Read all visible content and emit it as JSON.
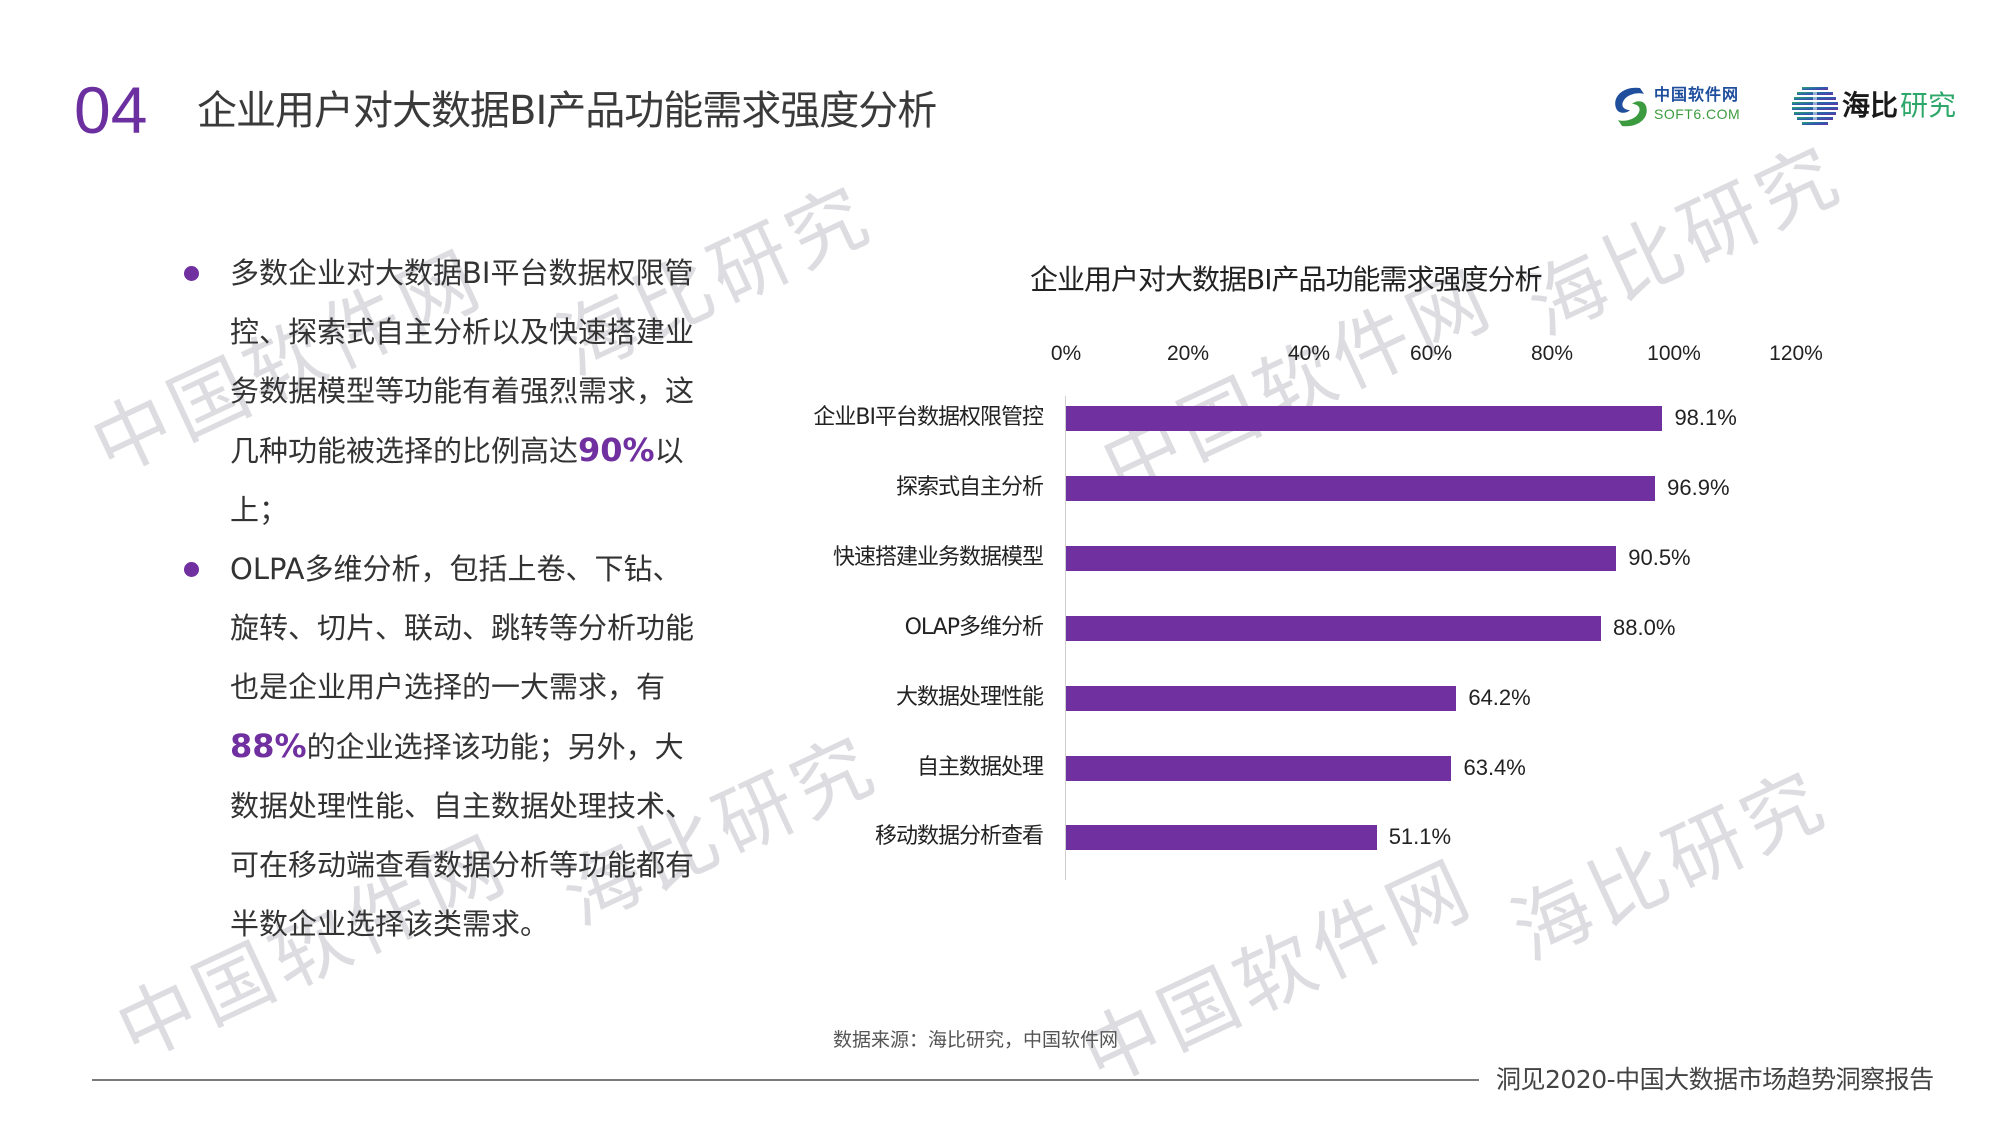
{
  "header": {
    "section_number": "04",
    "title": "企业用户对大数据BI产品功能需求强度分析",
    "logos": [
      {
        "name": "中国软件网",
        "subtitle": "SOFT6.COM"
      },
      {
        "name_part1": "海比",
        "name_part2": "研究"
      }
    ]
  },
  "bullets": [
    {
      "before": "多数企业对大数据BI平台数据权限管控、探索式自主分析以及快速搭建业务数据模型等功能有着强烈需求，这几种功能被选择的比例高达",
      "highlight": "90%",
      "after": "以上；"
    },
    {
      "before": "OLPA多维分析，包括上卷、下钻、旋转、切片、联动、跳转等分析功能也是企业用户选择的一大需求，有",
      "highlight": "88%",
      "after": "的企业选择该功能；另外，大数据处理性能、自主数据处理技术、可在移动端查看数据分析等功能都有半数企业选择该类需求。"
    }
  ],
  "chart_data": {
    "type": "bar",
    "orientation": "horizontal",
    "title": "企业用户对大数据BI产品功能需求强度分析",
    "categories": [
      "企业BI平台数据权限管控",
      "探索式自主分析",
      "快速搭建业务数据模型",
      "OLAP多维分析",
      "大数据处理性能",
      "自主数据处理",
      "移动数据分析查看"
    ],
    "values": [
      98.1,
      96.9,
      90.5,
      88.0,
      64.2,
      63.4,
      51.1
    ],
    "value_labels": [
      "98.1%",
      "96.9%",
      "90.5%",
      "88.0%",
      "64.2%",
      "63.4%",
      "51.1%"
    ],
    "xlabel": "",
    "ylabel": "",
    "xlim": [
      0,
      120
    ],
    "x_ticks": [
      "0%",
      "20%",
      "40%",
      "60%",
      "80%",
      "100%",
      "120%"
    ],
    "x_axis_position": "top",
    "grid": false,
    "legend": null,
    "bar_color": "#7030A0"
  },
  "source": "数据来源：海比研究，中国软件网",
  "footer": "洞见2020-中国大数据市场趋势洞察报告",
  "watermarks": [
    "中国软件网",
    "海比研究"
  ],
  "colors": {
    "accent": "#7030A0",
    "text": "#333333"
  }
}
